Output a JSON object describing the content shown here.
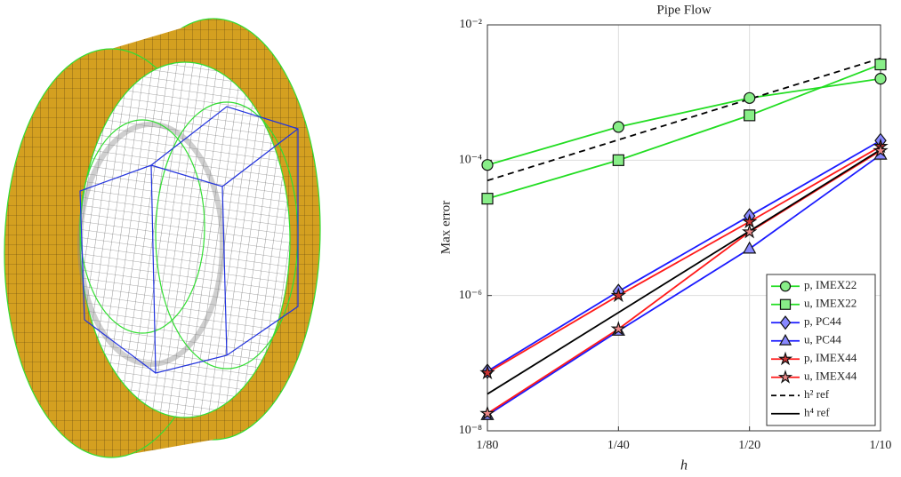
{
  "chart_data": {
    "type": "line",
    "title": "Pipe Flow",
    "x_label": "h",
    "y_label": "Max error",
    "x": [
      0.0125,
      0.025,
      0.05,
      0.1
    ],
    "xlim": [
      0.0125,
      0.1
    ],
    "ylim": [
      1e-08,
      0.01
    ],
    "xscale": "log",
    "yscale": "log",
    "grid": true,
    "legend": "southeast",
    "xticks": [
      {
        "value": 0.0125,
        "label": "1/80"
      },
      {
        "value": 0.025,
        "label": "1/40"
      },
      {
        "value": 0.05,
        "label": "1/20"
      },
      {
        "value": 0.1,
        "label": "1/10"
      }
    ],
    "yticks": [
      {
        "value": 1e-08,
        "label": "10⁻⁸"
      },
      {
        "value": 1e-06,
        "label": "10⁻⁶"
      },
      {
        "value": 0.0001,
        "label": "10⁻⁴"
      },
      {
        "value": 0.01,
        "label": "10⁻²"
      }
    ],
    "series": [
      {
        "name": "p, IMEX22",
        "color": "#22dd22",
        "face": "#88ee88",
        "marker": "circle",
        "values": [
          8.5e-05,
          0.00031,
          0.00083,
          0.0016
        ]
      },
      {
        "name": "u, IMEX22",
        "color": "#22dd22",
        "face": "#88ee88",
        "marker": "square",
        "values": [
          2.7e-05,
          0.0001,
          0.00046,
          0.0026
        ]
      },
      {
        "name": "p, PC44",
        "color": "#1a1aff",
        "face": "#8888ff",
        "marker": "diamond",
        "values": [
          7.6e-08,
          1.15e-06,
          1.5e-05,
          0.000195
        ]
      },
      {
        "name": "u, PC44",
        "color": "#1a1aff",
        "face": "#8888ff",
        "marker": "triangle",
        "values": [
          1.7e-08,
          3e-07,
          4.9e-06,
          0.00012
        ]
      },
      {
        "name": "p, IMEX44",
        "color": "#ff1a1a",
        "face": "#cc3333",
        "marker": "star",
        "values": [
          7.2e-08,
          1e-06,
          1.23e-05,
          0.00016
        ]
      },
      {
        "name": "u, IMEX44",
        "color": "#ff1a1a",
        "face": "#ee8888",
        "marker": "star",
        "values": [
          1.8e-08,
          3.2e-07,
          8.7e-06,
          0.000138
        ]
      },
      {
        "name": "h² ref",
        "color": "#000000",
        "dash": true,
        "values": [
          5e-05,
          0.0002,
          0.0008,
          0.0032
        ]
      },
      {
        "name": "h⁴ ref",
        "color": "#000000",
        "values": [
          3.5e-08,
          5.6e-07,
          8.96e-06,
          0.000143
        ]
      }
    ]
  }
}
